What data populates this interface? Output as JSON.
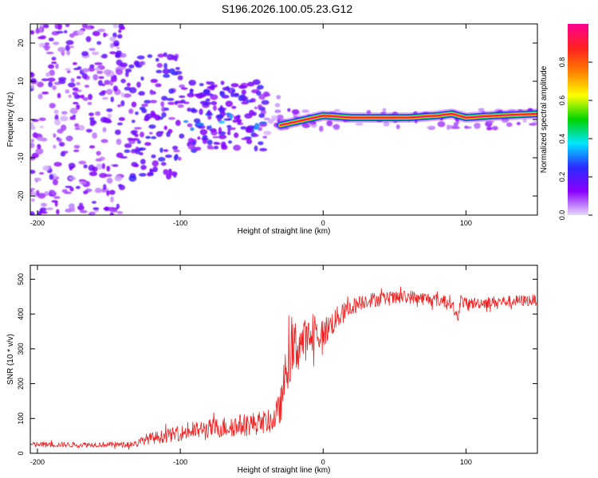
{
  "title": "S196.2026.100.05.23.G12",
  "chart_data": [
    {
      "type": "heatmap",
      "title": "",
      "xlabel": "Height of straight line (km)",
      "ylabel": "Frequency (Hz)",
      "xlim": [
        -205,
        150
      ],
      "ylim": [
        -25,
        25
      ],
      "xticks": [
        -200,
        -100,
        0,
        100
      ],
      "yticks": [
        -20,
        -10,
        0,
        10,
        20
      ],
      "colorbar": {
        "label": "Normalized spectral amplitude",
        "range": [
          0,
          1
        ],
        "ticks": [
          "0.0",
          "0.2",
          "0.4",
          "0.6",
          "0.8"
        ],
        "colormap": [
          "#e6d9ff",
          "#8a00ff",
          "#2a2aff",
          "#00e5ff",
          "#00d400",
          "#ffff00",
          "#ff7f00",
          "#ff2020",
          "#ff0090"
        ]
      },
      "ridge": {
        "description": "dominant tone",
        "x": [
          -30,
          0,
          20,
          40,
          60,
          80,
          90,
          100,
          120,
          150
        ],
        "freq_hz": [
          -1.5,
          1,
          0.5,
          0.5,
          0.5,
          1,
          1.5,
          0.5,
          1,
          1.5
        ]
      }
    },
    {
      "type": "line",
      "title": "",
      "xlabel": "Height of straight line (km)",
      "ylabel": "SNR (10 * v/v)",
      "xlim": [
        -205,
        150
      ],
      "ylim": [
        0,
        540
      ],
      "xticks": [
        -200,
        -100,
        0,
        100
      ],
      "yticks": [
        0,
        100,
        200,
        300,
        400,
        500
      ],
      "series": [
        {
          "name": "SNR",
          "color": "#ee2222",
          "x": [
            -205,
            -180,
            -160,
            -140,
            -130,
            -125,
            -110,
            -90,
            -70,
            -50,
            -40,
            -35,
            -30,
            -25,
            -20,
            -15,
            -10,
            -5,
            0,
            10,
            20,
            30,
            50,
            60,
            80,
            90,
            94,
            96,
            100,
            120,
            150
          ],
          "y": [
            25,
            25,
            25,
            25,
            28,
            40,
            50,
            65,
            75,
            85,
            90,
            95,
            130,
            260,
            300,
            320,
            330,
            340,
            345,
            390,
            420,
            440,
            445,
            450,
            440,
            435,
            380,
            440,
            430,
            435,
            440
          ],
          "spread": [
            14,
            14,
            14,
            14,
            20,
            28,
            35,
            45,
            55,
            60,
            60,
            60,
            90,
            140,
            160,
            120,
            100,
            90,
            80,
            60,
            45,
            40,
            35,
            35,
            35,
            35,
            30,
            35,
            30,
            30,
            30
          ]
        }
      ]
    }
  ]
}
